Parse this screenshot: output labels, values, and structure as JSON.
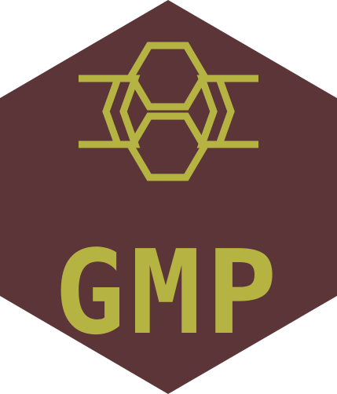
{
  "logo": {
    "text": "GMP",
    "icon": "honeycomb-hexagon-icon",
    "colors": {
      "background": "#5c3538",
      "accent": "#b5b443",
      "page": "#ffffff"
    }
  }
}
